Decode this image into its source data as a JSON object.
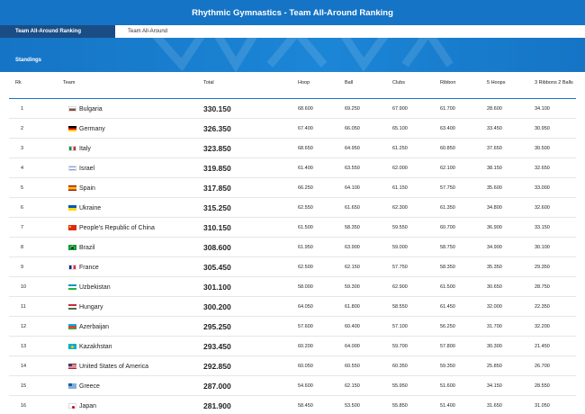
{
  "header": {
    "title": "Rhythmic Gymnastics - Team All-Around Ranking"
  },
  "tabs": [
    {
      "label": "Team All-Around Ranking",
      "active": true
    },
    {
      "label": "Team All-Around",
      "active": false
    }
  ],
  "section": {
    "title": "Standings"
  },
  "colors": {
    "primary": "#1574c5",
    "tab_active_bg": "#1a4d86"
  },
  "columns": {
    "rank": "Rk",
    "team": "Team",
    "total": "Total",
    "hoop": "Hoop",
    "ball": "Ball",
    "clubs": "Clubs",
    "ribbon": "Ribbon",
    "hoops5": "5 Hoops",
    "mix": "3 Ribbons 2 Balls"
  },
  "rows": [
    {
      "rank": "1",
      "team": "Bulgaria",
      "flag": "bulgaria-flag-icon",
      "total": "330.150",
      "hoop": "68.600",
      "ball": "69.250",
      "clubs": "67.900",
      "ribbon": "61.700",
      "hoops5": "28.600",
      "mix": "34.100"
    },
    {
      "rank": "2",
      "team": "Germany",
      "flag": "germany-flag-icon",
      "total": "326.350",
      "hoop": "67.400",
      "ball": "66.050",
      "clubs": "65.100",
      "ribbon": "63.400",
      "hoops5": "33.450",
      "mix": "30.950"
    },
    {
      "rank": "3",
      "team": "Italy",
      "flag": "italy-flag-icon",
      "total": "323.850",
      "hoop": "68.650",
      "ball": "64.950",
      "clubs": "61.250",
      "ribbon": "60.850",
      "hoops5": "37.650",
      "mix": "30.500"
    },
    {
      "rank": "4",
      "team": "Israel",
      "flag": "israel-flag-icon",
      "total": "319.850",
      "hoop": "61.400",
      "ball": "63.550",
      "clubs": "62.000",
      "ribbon": "62.100",
      "hoops5": "38.150",
      "mix": "32.650"
    },
    {
      "rank": "5",
      "team": "Spain",
      "flag": "spain-flag-icon",
      "total": "317.850",
      "hoop": "66.250",
      "ball": "64.100",
      "clubs": "61.150",
      "ribbon": "57.750",
      "hoops5": "35.600",
      "mix": "33.000"
    },
    {
      "rank": "6",
      "team": "Ukraine",
      "flag": "ukraine-flag-icon",
      "total": "315.250",
      "hoop": "62.550",
      "ball": "61.650",
      "clubs": "62.300",
      "ribbon": "61.350",
      "hoops5": "34.800",
      "mix": "32.600"
    },
    {
      "rank": "7",
      "team": "People's Republic of China",
      "flag": "china-flag-icon",
      "total": "310.150",
      "hoop": "61.500",
      "ball": "58.350",
      "clubs": "59.550",
      "ribbon": "60.700",
      "hoops5": "36.900",
      "mix": "33.150"
    },
    {
      "rank": "8",
      "team": "Brazil",
      "flag": "brazil-flag-icon",
      "total": "308.600",
      "hoop": "61.950",
      "ball": "63.900",
      "clubs": "59.000",
      "ribbon": "58.750",
      "hoops5": "34.900",
      "mix": "30.100"
    },
    {
      "rank": "9",
      "team": "France",
      "flag": "france-flag-icon",
      "total": "305.450",
      "hoop": "62.500",
      "ball": "62.150",
      "clubs": "57.750",
      "ribbon": "58.350",
      "hoops5": "35.350",
      "mix": "29.350"
    },
    {
      "rank": "10",
      "team": "Uzbekistan",
      "flag": "uzbekistan-flag-icon",
      "total": "301.100",
      "hoop": "58.000",
      "ball": "59.300",
      "clubs": "62.900",
      "ribbon": "61.500",
      "hoops5": "30.650",
      "mix": "28.750"
    },
    {
      "rank": "11",
      "team": "Hungary",
      "flag": "hungary-flag-icon",
      "total": "300.200",
      "hoop": "64.050",
      "ball": "61.800",
      "clubs": "58.550",
      "ribbon": "61.450",
      "hoops5": "32.000",
      "mix": "22.350"
    },
    {
      "rank": "12",
      "team": "Azerbaijan",
      "flag": "azerbaijan-flag-icon",
      "total": "295.250",
      "hoop": "57.600",
      "ball": "60.400",
      "clubs": "57.100",
      "ribbon": "56.250",
      "hoops5": "31.700",
      "mix": "32.200"
    },
    {
      "rank": "13",
      "team": "Kazakhstan",
      "flag": "kazakhstan-flag-icon",
      "total": "293.450",
      "hoop": "60.200",
      "ball": "64.000",
      "clubs": "59.700",
      "ribbon": "57.800",
      "hoops5": "30.300",
      "mix": "21.450"
    },
    {
      "rank": "14",
      "team": "United States of America",
      "flag": "usa-flag-icon",
      "total": "292.850",
      "hoop": "60.050",
      "ball": "60.550",
      "clubs": "60.350",
      "ribbon": "59.350",
      "hoops5": "25.850",
      "mix": "26.700"
    },
    {
      "rank": "15",
      "team": "Greece",
      "flag": "greece-flag-icon",
      "total": "287.000",
      "hoop": "54.600",
      "ball": "62.150",
      "clubs": "55.950",
      "ribbon": "51.600",
      "hoops5": "34.150",
      "mix": "28.550"
    },
    {
      "rank": "16",
      "team": "Japan",
      "flag": "japan-flag-icon",
      "total": "281.900",
      "hoop": "58.450",
      "ball": "53.500",
      "clubs": "55.850",
      "ribbon": "51.400",
      "hoops5": "31.650",
      "mix": "31.050"
    }
  ]
}
